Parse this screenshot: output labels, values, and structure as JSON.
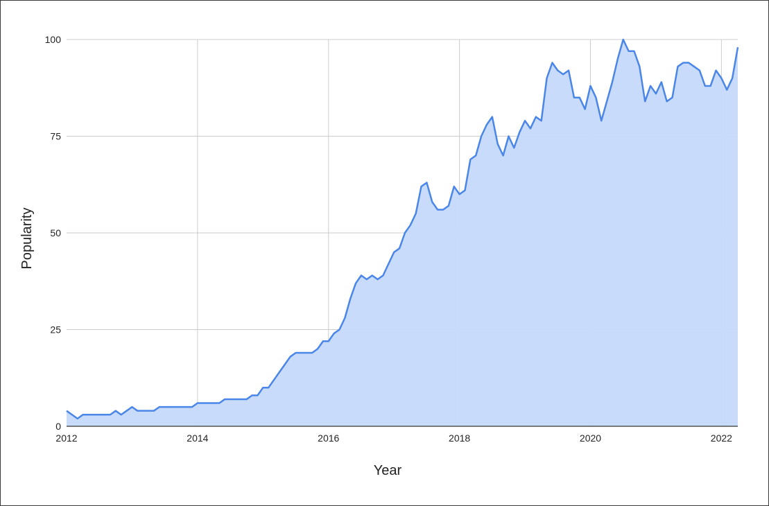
{
  "chart_data": {
    "type": "area",
    "title": "",
    "xlabel": "Year",
    "ylabel": "Popularity",
    "xlim": [
      2012.0,
      2022.25
    ],
    "ylim": [
      0,
      100
    ],
    "x_ticks": [
      2012,
      2014,
      2016,
      2018,
      2020,
      2022
    ],
    "x_tick_labels": [
      "2012",
      "2014",
      "2016",
      "2018",
      "2020",
      "2022"
    ],
    "y_ticks": [
      0,
      25,
      50,
      75,
      100
    ],
    "y_tick_labels": [
      "0",
      "25",
      "50",
      "75",
      "100"
    ],
    "grid": true,
    "colors": {
      "line": "#4a86e8",
      "fill": "#c6d9fa",
      "grid": "#cccccc",
      "axis": "#333333"
    },
    "series": [
      {
        "x": [
          "2012-01",
          "2012-02",
          "2012-03",
          "2012-04",
          "2012-05",
          "2012-06",
          "2012-07",
          "2012-08",
          "2012-09",
          "2012-10",
          "2012-11",
          "2012-12",
          "2013-01",
          "2013-02",
          "2013-03",
          "2013-04",
          "2013-05",
          "2013-06",
          "2013-07",
          "2013-08",
          "2013-09",
          "2013-10",
          "2013-11",
          "2013-12",
          "2014-01",
          "2014-02",
          "2014-03",
          "2014-04",
          "2014-05",
          "2014-06",
          "2014-07",
          "2014-08",
          "2014-09",
          "2014-10",
          "2014-11",
          "2014-12",
          "2015-01",
          "2015-02",
          "2015-03",
          "2015-04",
          "2015-05",
          "2015-06",
          "2015-07",
          "2015-08",
          "2015-09",
          "2015-10",
          "2015-11",
          "2015-12",
          "2016-01",
          "2016-02",
          "2016-03",
          "2016-04",
          "2016-05",
          "2016-06",
          "2016-07",
          "2016-08",
          "2016-09",
          "2016-10",
          "2016-11",
          "2016-12",
          "2017-01",
          "2017-02",
          "2017-03",
          "2017-04",
          "2017-05",
          "2017-06",
          "2017-07",
          "2017-08",
          "2017-09",
          "2017-10",
          "2017-11",
          "2017-12",
          "2018-01",
          "2018-02",
          "2018-03",
          "2018-04",
          "2018-05",
          "2018-06",
          "2018-07",
          "2018-08",
          "2018-09",
          "2018-10",
          "2018-11",
          "2018-12",
          "2019-01",
          "2019-02",
          "2019-03",
          "2019-04",
          "2019-05",
          "2019-06",
          "2019-07",
          "2019-08",
          "2019-09",
          "2019-10",
          "2019-11",
          "2019-12",
          "2020-01",
          "2020-02",
          "2020-03",
          "2020-04",
          "2020-05",
          "2020-06",
          "2020-07",
          "2020-08",
          "2020-09",
          "2020-10",
          "2020-11",
          "2020-12",
          "2021-01",
          "2021-02",
          "2021-03",
          "2021-04",
          "2021-05",
          "2021-06",
          "2021-07",
          "2021-08",
          "2021-09",
          "2021-10",
          "2021-11",
          "2021-12",
          "2022-01",
          "2022-02",
          "2022-03",
          "2022-04"
        ],
        "values": [
          4,
          3,
          2,
          3,
          3,
          3,
          3,
          3,
          3,
          4,
          3,
          4,
          5,
          4,
          4,
          4,
          4,
          5,
          5,
          5,
          5,
          5,
          5,
          5,
          6,
          6,
          6,
          6,
          6,
          7,
          7,
          7,
          7,
          7,
          8,
          8,
          10,
          10,
          12,
          14,
          16,
          18,
          19,
          19,
          19,
          19,
          20,
          22,
          22,
          24,
          25,
          28,
          33,
          37,
          39,
          38,
          39,
          38,
          39,
          42,
          45,
          46,
          50,
          52,
          55,
          62,
          63,
          58,
          56,
          56,
          57,
          62,
          60,
          61,
          69,
          70,
          75,
          78,
          80,
          73,
          70,
          75,
          72,
          76,
          79,
          77,
          80,
          79,
          90,
          94,
          92,
          91,
          92,
          85,
          85,
          82,
          88,
          85,
          79,
          84,
          89,
          95,
          100,
          97,
          97,
          93,
          84,
          88,
          86,
          89,
          84,
          85,
          93,
          94,
          94,
          93,
          92,
          88,
          88,
          92,
          90,
          87,
          90,
          98
        ]
      }
    ]
  }
}
